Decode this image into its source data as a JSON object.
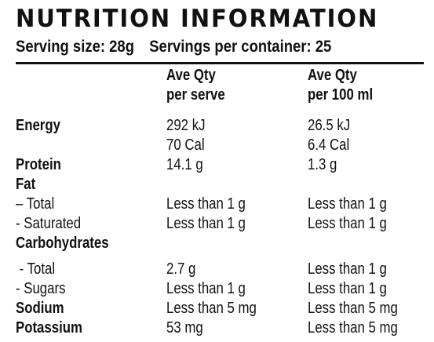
{
  "title": "NUTRITION INFORMATION",
  "serving": {
    "size": "Serving size: 28g",
    "per_container": "Servings per container: 25"
  },
  "headers": {
    "col1_line1": "Ave Qty",
    "col1_line2": "per serve",
    "col2_line1": "Ave Qty",
    "col2_line2": "per 100 ml"
  },
  "rows": {
    "energy": {
      "name": "Energy",
      "serve_kj": "292 kJ",
      "serve_cal": "70 Cal",
      "per100_kj": "26.5 kJ",
      "per100_cal": "6.4 Cal"
    },
    "protein": {
      "name": "Protein",
      "serve": "14.1 g",
      "per100": "1.3 g"
    },
    "fat": {
      "name": "Fat"
    },
    "fat_total": {
      "name": "– Total",
      "serve": "Less than 1 g",
      "per100": "Less than 1 g"
    },
    "fat_saturated": {
      "name": "- Saturated",
      "serve": "Less than 1 g",
      "per100": "Less than 1 g"
    },
    "carbohydrates": {
      "name": "Carbohydrates"
    },
    "carb_total": {
      "name": " - Total",
      "serve": "2.7 g",
      "per100": "Less than 1 g"
    },
    "carb_sugars": {
      "name": "- Sugars",
      "serve": "Less than 1 g",
      "per100": "Less than 1 g"
    },
    "sodium": {
      "name": "Sodium",
      "serve": "Less than 5 mg",
      "per100": "Less than 5 mg"
    },
    "potassium": {
      "name": "Potassium",
      "serve": "53 mg",
      "per100": "Less than 5 mg"
    }
  }
}
